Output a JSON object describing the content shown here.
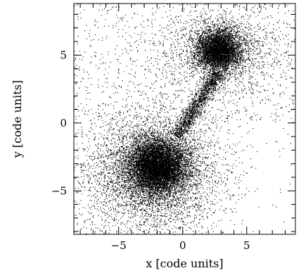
{
  "chart_data": {
    "type": "scatter",
    "title": "",
    "xlabel": "x [code units]",
    "ylabel": "y [code units]",
    "xlim": [
      -8.5,
      8.8
    ],
    "ylim": [
      -8.2,
      8.8
    ],
    "xticks": [
      -5,
      0,
      5
    ],
    "yticks": [
      -5,
      0,
      5
    ],
    "tick_labels_x": [
      "−5",
      "0",
      "5"
    ],
    "tick_labels_y": [
      "−5",
      "0",
      "5"
    ],
    "grid": false,
    "marker_color": "#000000",
    "series": [
      {
        "clusters": [
          {
            "center": [
              -2.0,
              -3.2
            ],
            "sigma_x": 1.1,
            "sigma_y": 1.0,
            "weight": 0.34
          },
          {
            "center": [
              -2.2,
              -3.6
            ],
            "sigma_x": 2.6,
            "sigma_y": 2.3,
            "weight": 0.22
          },
          {
            "center": [
              2.8,
              5.4
            ],
            "sigma_x": 0.85,
            "sigma_y": 0.75,
            "weight": 0.2
          },
          {
            "center": [
              3.0,
              5.2
            ],
            "sigma_x": 2.2,
            "sigma_y": 1.6,
            "weight": 0.08
          }
        ],
        "bridge": {
          "from": [
            -0.5,
            -1.0
          ],
          "to": [
            2.8,
            3.8
          ],
          "width": 0.6,
          "weight": 0.07
        },
        "background_fraction": 0.09
      }
    ]
  }
}
